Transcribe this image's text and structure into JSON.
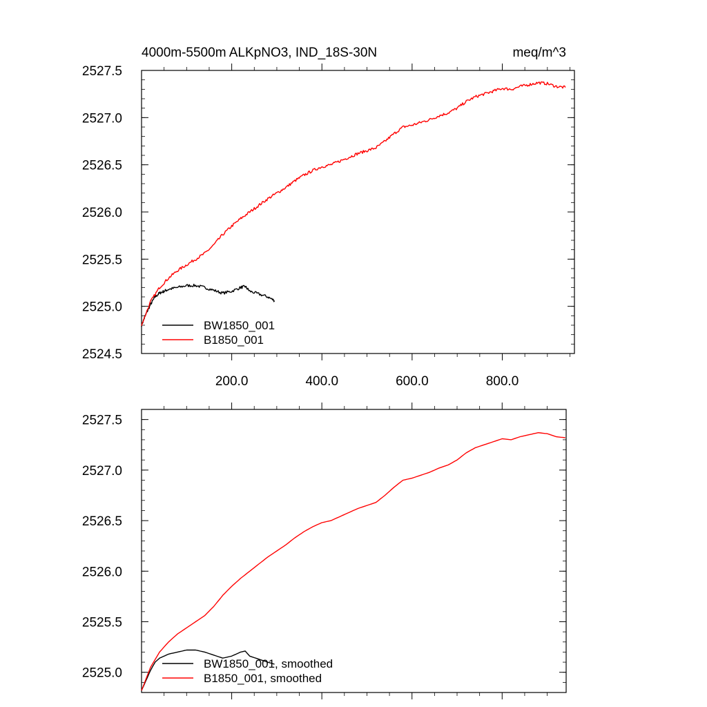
{
  "chart_data": [
    {
      "type": "line",
      "title": "4000m-5500m ALKpNO3, IND_18S-30N",
      "units": "meq/m^3",
      "xlabel": "",
      "ylabel": "",
      "xlim": [
        0,
        960
      ],
      "ylim": [
        2524.5,
        2527.5
      ],
      "xticks": [
        200,
        400,
        600,
        800
      ],
      "xtick_labels": [
        "200.0",
        "400.0",
        "600.0",
        "800.0"
      ],
      "yticks": [
        2524.5,
        2525.0,
        2525.5,
        2526.0,
        2526.5,
        2527.0,
        2527.5
      ],
      "ytick_labels": [
        "2524.5",
        "2525.0",
        "2525.5",
        "2526.0",
        "2526.5",
        "2527.0",
        "2527.5"
      ],
      "legend_position": "bottom-left",
      "series": [
        {
          "name": "BW1850_001",
          "color": "#000000",
          "x": [
            0,
            10,
            20,
            30,
            40,
            50,
            60,
            80,
            100,
            120,
            140,
            160,
            180,
            200,
            220,
            230,
            240,
            260,
            280,
            295
          ],
          "y": [
            2524.8,
            2524.92,
            2525.02,
            2525.1,
            2525.14,
            2525.16,
            2525.18,
            2525.2,
            2525.22,
            2525.22,
            2525.2,
            2525.17,
            2525.14,
            2525.16,
            2525.2,
            2525.21,
            2525.16,
            2525.13,
            2525.1,
            2525.06
          ]
        },
        {
          "name": "B1850_001",
          "color": "#ff0000",
          "x": [
            0,
            20,
            40,
            60,
            80,
            100,
            120,
            140,
            160,
            180,
            200,
            220,
            240,
            260,
            280,
            300,
            320,
            340,
            360,
            380,
            400,
            420,
            440,
            460,
            480,
            500,
            520,
            540,
            560,
            580,
            600,
            620,
            640,
            660,
            680,
            700,
            720,
            740,
            760,
            780,
            800,
            820,
            840,
            860,
            880,
            900,
            920,
            940
          ],
          "y": [
            2524.8,
            2525.05,
            2525.2,
            2525.3,
            2525.38,
            2525.44,
            2525.5,
            2525.56,
            2525.65,
            2525.76,
            2525.85,
            2525.93,
            2526.0,
            2526.07,
            2526.14,
            2526.2,
            2526.26,
            2526.33,
            2526.39,
            2526.44,
            2526.48,
            2526.5,
            2526.54,
            2526.58,
            2526.62,
            2526.65,
            2526.68,
            2526.75,
            2526.83,
            2526.9,
            2526.92,
            2526.95,
            2526.98,
            2527.02,
            2527.05,
            2527.1,
            2527.17,
            2527.22,
            2527.25,
            2527.28,
            2527.31,
            2527.3,
            2527.33,
            2527.35,
            2527.37,
            2527.36,
            2527.33,
            2527.32
          ]
        }
      ],
      "noisy": true
    },
    {
      "type": "line",
      "title": "",
      "xlabel": "",
      "ylabel": "",
      "xlim": [
        0,
        960
      ],
      "ylim": [
        2524.8,
        2527.6
      ],
      "xticks": [
        200,
        400,
        600,
        800
      ],
      "yticks": [
        2525.0,
        2525.5,
        2526.0,
        2526.5,
        2527.0,
        2527.5
      ],
      "ytick_labels": [
        "2525.0",
        "2525.5",
        "2526.0",
        "2526.5",
        "2527.0",
        "2527.5"
      ],
      "legend_position": "bottom-left",
      "series": [
        {
          "name": "BW1850_001, smoothed",
          "color": "#000000",
          "x": [
            0,
            10,
            20,
            30,
            40,
            50,
            60,
            80,
            100,
            120,
            140,
            160,
            180,
            200,
            220,
            230,
            240,
            260,
            280,
            295
          ],
          "y": [
            2524.82,
            2524.92,
            2525.02,
            2525.1,
            2525.14,
            2525.16,
            2525.18,
            2525.2,
            2525.22,
            2525.22,
            2525.2,
            2525.17,
            2525.14,
            2525.16,
            2525.2,
            2525.21,
            2525.16,
            2525.13,
            2525.1,
            2525.08
          ]
        },
        {
          "name": "B1850_001, smoothed",
          "color": "#ff0000",
          "x": [
            0,
            20,
            40,
            60,
            80,
            100,
            120,
            140,
            160,
            180,
            200,
            220,
            240,
            260,
            280,
            300,
            320,
            340,
            360,
            380,
            400,
            420,
            440,
            460,
            480,
            500,
            520,
            540,
            560,
            580,
            600,
            620,
            640,
            660,
            680,
            700,
            720,
            740,
            760,
            780,
            800,
            820,
            840,
            860,
            880,
            900,
            920,
            940
          ],
          "y": [
            2524.82,
            2525.05,
            2525.2,
            2525.3,
            2525.38,
            2525.44,
            2525.5,
            2525.56,
            2525.65,
            2525.76,
            2525.85,
            2525.93,
            2526.0,
            2526.07,
            2526.14,
            2526.2,
            2526.26,
            2526.33,
            2526.39,
            2526.44,
            2526.48,
            2526.5,
            2526.54,
            2526.58,
            2526.62,
            2526.65,
            2526.68,
            2526.75,
            2526.83,
            2526.9,
            2526.92,
            2526.95,
            2526.98,
            2527.02,
            2527.05,
            2527.1,
            2527.17,
            2527.22,
            2527.25,
            2527.28,
            2527.31,
            2527.3,
            2527.33,
            2527.35,
            2527.37,
            2527.36,
            2527.33,
            2527.32
          ]
        }
      ],
      "noisy": false
    }
  ]
}
